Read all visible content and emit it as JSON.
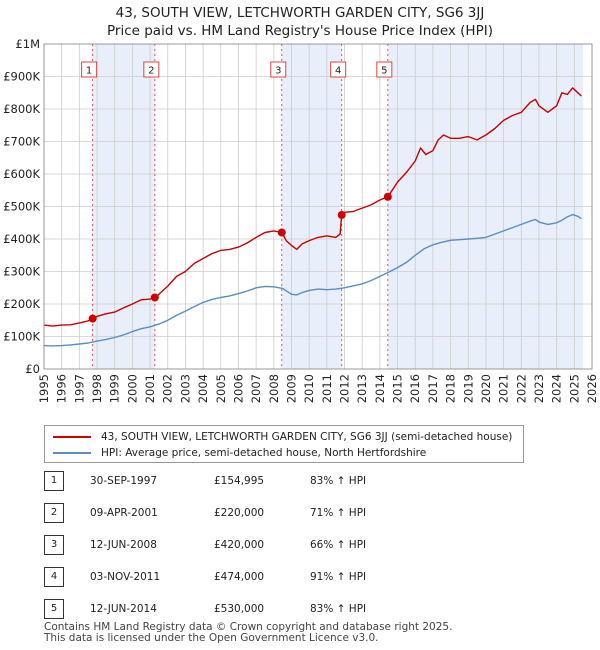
{
  "title_line1": "43, SOUTH VIEW, LETCHWORTH GARDEN CITY, SG6 3JJ",
  "title_line2": "Price paid vs. HM Land Registry's House Price Index (HPI)",
  "colors": {
    "price": "#cc0000",
    "hpi": "#5b8cc6",
    "band": "#e8eefa",
    "grid": "#cccccc"
  },
  "legend": {
    "price_label": "43, SOUTH VIEW, LETCHWORTH GARDEN CITY, SG6 3JJ (semi-detached house)",
    "hpi_label": "HPI: Average price, semi-detached house, North Hertfordshire"
  },
  "transactions": [
    {
      "num": "1",
      "date": "30-SEP-1997",
      "price": "£154,995",
      "hpi": "83% ↑ HPI"
    },
    {
      "num": "2",
      "date": "09-APR-2001",
      "price": "£220,000",
      "hpi": "71% ↑ HPI"
    },
    {
      "num": "3",
      "date": "12-JUN-2008",
      "price": "£420,000",
      "hpi": "66% ↑ HPI"
    },
    {
      "num": "4",
      "date": "03-NOV-2011",
      "price": "£474,000",
      "hpi": "91% ↑ HPI"
    },
    {
      "num": "5",
      "date": "12-JUN-2014",
      "price": "£530,000",
      "hpi": "83% ↑ HPI"
    }
  ],
  "footer_line1": "Contains HM Land Registry data © Crown copyright and database right 2025.",
  "footer_line2": "This data is licensed under the Open Government Licence v3.0.",
  "chart_data": {
    "type": "line",
    "xlim": [
      1995,
      2026
    ],
    "ylim": [
      0,
      1000000
    ],
    "x_ticks": [
      1995,
      1996,
      1997,
      1998,
      1999,
      2000,
      2001,
      2002,
      2003,
      2004,
      2005,
      2006,
      2007,
      2008,
      2009,
      2010,
      2011,
      2012,
      2013,
      2014,
      2015,
      2016,
      2017,
      2018,
      2019,
      2020,
      2021,
      2022,
      2023,
      2024,
      2025,
      2026
    ],
    "y_ticks": [
      {
        "value": 0,
        "label": "£0"
      },
      {
        "value": 100000,
        "label": "£100K"
      },
      {
        "value": 200000,
        "label": "£200K"
      },
      {
        "value": 300000,
        "label": "£300K"
      },
      {
        "value": 400000,
        "label": "£400K"
      },
      {
        "value": 500000,
        "label": "£500K"
      },
      {
        "value": 600000,
        "label": "£600K"
      },
      {
        "value": 700000,
        "label": "£700K"
      },
      {
        "value": 800000,
        "label": "£800K"
      },
      {
        "value": 900000,
        "label": "£900K"
      },
      {
        "value": 1000000,
        "label": "£1M"
      }
    ],
    "shaded_bands": [
      [
        1997.75,
        2001.27
      ],
      [
        2008.45,
        2011.84
      ],
      [
        2014.45,
        2025.5
      ]
    ],
    "sales": [
      {
        "label": "1",
        "x": 1997.75,
        "y": 154995
      },
      {
        "label": "2",
        "x": 2001.27,
        "y": 220000
      },
      {
        "label": "3",
        "x": 2008.45,
        "y": 420000
      },
      {
        "label": "4",
        "x": 2011.84,
        "y": 474000
      },
      {
        "label": "5",
        "x": 2014.45,
        "y": 530000
      }
    ],
    "series": [
      {
        "name": "43, SOUTH VIEW, LETCHWORTH GARDEN CITY, SG6 3JJ (semi-detached house)",
        "color": "#cc0000",
        "x": [
          1995.0,
          1995.5,
          1996.0,
          1996.5,
          1997.0,
          1997.5,
          1997.75,
          1998.0,
          1998.5,
          1999.0,
          1999.5,
          2000.0,
          2000.5,
          2001.0,
          2001.27,
          2001.5,
          2002.0,
          2002.5,
          2003.0,
          2003.5,
          2004.0,
          2004.5,
          2005.0,
          2005.5,
          2006.0,
          2006.5,
          2007.0,
          2007.5,
          2008.0,
          2008.45,
          2008.7,
          2009.0,
          2009.3,
          2009.6,
          2010.0,
          2010.5,
          2011.0,
          2011.5,
          2011.75,
          2011.84,
          2012.0,
          2012.5,
          2013.0,
          2013.5,
          2014.0,
          2014.45,
          2014.7,
          2015.0,
          2015.5,
          2016.0,
          2016.3,
          2016.6,
          2017.0,
          2017.3,
          2017.6,
          2018.0,
          2018.5,
          2019.0,
          2019.5,
          2020.0,
          2020.5,
          2021.0,
          2021.5,
          2022.0,
          2022.5,
          2022.8,
          2023.0,
          2023.5,
          2024.0,
          2024.3,
          2024.6,
          2024.9,
          2025.2,
          2025.4
        ],
        "y": [
          135000,
          132000,
          135000,
          136000,
          142000,
          148000,
          154995,
          162000,
          170000,
          175000,
          188000,
          200000,
          213000,
          215000,
          220000,
          230000,
          255000,
          285000,
          300000,
          325000,
          340000,
          355000,
          365000,
          368000,
          375000,
          388000,
          405000,
          420000,
          425000,
          420000,
          395000,
          380000,
          368000,
          385000,
          395000,
          405000,
          410000,
          405000,
          415000,
          474000,
          482000,
          485000,
          495000,
          505000,
          520000,
          530000,
          550000,
          575000,
          605000,
          640000,
          680000,
          660000,
          672000,
          705000,
          720000,
          710000,
          710000,
          715000,
          705000,
          720000,
          740000,
          765000,
          780000,
          790000,
          820000,
          830000,
          810000,
          790000,
          810000,
          850000,
          845000,
          865000,
          850000,
          840000
        ]
      },
      {
        "name": "HPI: Average price, semi-detached house, North Hertfordshire",
        "color": "#5b8cc6",
        "x": [
          1995.0,
          1995.5,
          1996.0,
          1996.5,
          1997.0,
          1997.5,
          1998.0,
          1998.5,
          1999.0,
          1999.5,
          2000.0,
          2000.5,
          2001.0,
          2001.5,
          2002.0,
          2002.5,
          2003.0,
          2003.5,
          2004.0,
          2004.5,
          2005.0,
          2005.5,
          2006.0,
          2006.5,
          2007.0,
          2007.5,
          2008.0,
          2008.5,
          2009.0,
          2009.3,
          2009.6,
          2010.0,
          2010.5,
          2011.0,
          2011.5,
          2012.0,
          2012.5,
          2013.0,
          2013.5,
          2014.0,
          2014.5,
          2015.0,
          2015.5,
          2016.0,
          2016.5,
          2017.0,
          2017.5,
          2018.0,
          2018.5,
          2019.0,
          2019.5,
          2020.0,
          2020.5,
          2021.0,
          2021.5,
          2022.0,
          2022.5,
          2022.8,
          2023.0,
          2023.5,
          2024.0,
          2024.3,
          2024.6,
          2024.9,
          2025.2,
          2025.4
        ],
        "y": [
          72000,
          71000,
          72000,
          74000,
          77000,
          80000,
          86000,
          91000,
          97000,
          105000,
          115000,
          124000,
          130000,
          138000,
          150000,
          165000,
          178000,
          192000,
          205000,
          214000,
          220000,
          225000,
          232000,
          240000,
          250000,
          254000,
          253000,
          248000,
          230000,
          228000,
          235000,
          242000,
          246000,
          244000,
          246000,
          250000,
          256000,
          262000,
          272000,
          285000,
          298000,
          312000,
          328000,
          350000,
          370000,
          382000,
          390000,
          396000,
          398000,
          400000,
          402000,
          405000,
          415000,
          425000,
          435000,
          445000,
          455000,
          460000,
          452000,
          445000,
          450000,
          458000,
          468000,
          475000,
          470000,
          462000
        ]
      }
    ]
  }
}
